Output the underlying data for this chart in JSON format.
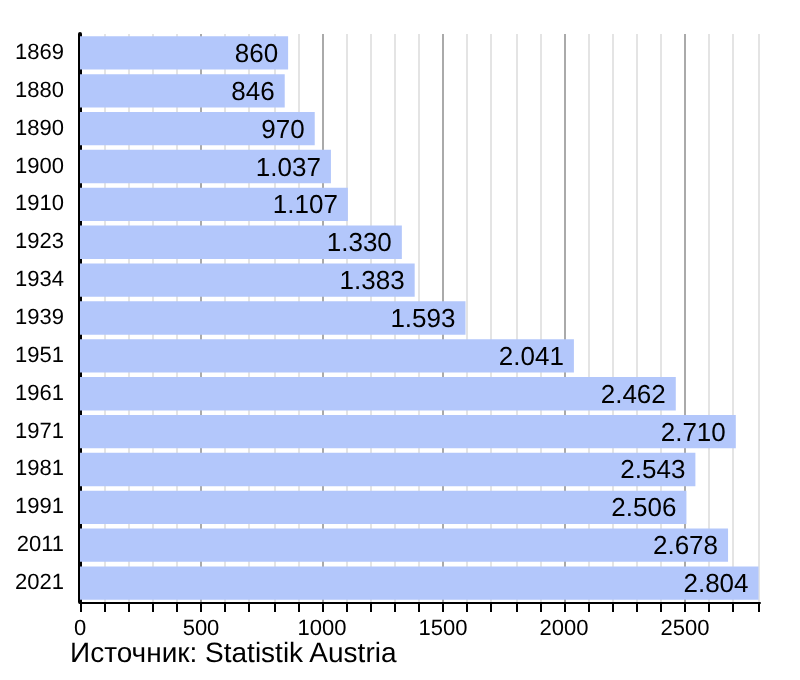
{
  "chart_data": {
    "type": "bar",
    "orientation": "horizontal",
    "categories": [
      "1869",
      "1880",
      "1890",
      "1900",
      "1910",
      "1923",
      "1934",
      "1939",
      "1951",
      "1961",
      "1971",
      "1981",
      "1991",
      "2011",
      "2021"
    ],
    "values": [
      860,
      846,
      970,
      1037,
      1107,
      1330,
      1383,
      1593,
      2041,
      2462,
      2710,
      2543,
      2506,
      2678,
      2804
    ],
    "value_labels": [
      "860",
      "846",
      "970",
      "1.037",
      "1.107",
      "1.330",
      "1.383",
      "1.593",
      "2.041",
      "2.462",
      "2.710",
      "2.543",
      "2.506",
      "2.678",
      "2.804"
    ],
    "color": "#b3c7fb",
    "xlim": [
      0,
      2810
    ],
    "xticks": [
      0,
      {
        "value": 100,
        "label": null
      },
      {
        "value": 200,
        "label": null
      },
      {
        "value": 300,
        "label": null
      },
      {
        "value": 400,
        "label": null
      },
      500,
      {
        "value": 600,
        "label": null
      },
      {
        "value": 700,
        "label": null
      },
      {
        "value": 800,
        "label": null
      },
      {
        "value": 900,
        "label": null
      },
      1000,
      {
        "value": 1100,
        "label": null
      },
      {
        "value": 1200,
        "label": null
      },
      {
        "value": 1300,
        "label": null
      },
      {
        "value": 1400,
        "label": null
      },
      1500,
      {
        "value": 1600,
        "label": null
      },
      {
        "value": 1700,
        "label": null
      },
      {
        "value": 1800,
        "label": null
      },
      {
        "value": 1900,
        "label": null
      },
      2000,
      {
        "value": 2100,
        "label": null
      },
      {
        "value": 2200,
        "label": null
      },
      {
        "value": 2300,
        "label": null
      },
      {
        "value": 2400,
        "label": null
      },
      2500,
      {
        "value": 2600,
        "label": null
      },
      {
        "value": 2700,
        "label": null
      },
      {
        "value": 2800,
        "label": null
      }
    ],
    "grid": "x",
    "annotations": [
      "Источник: Statistik Austria"
    ]
  }
}
